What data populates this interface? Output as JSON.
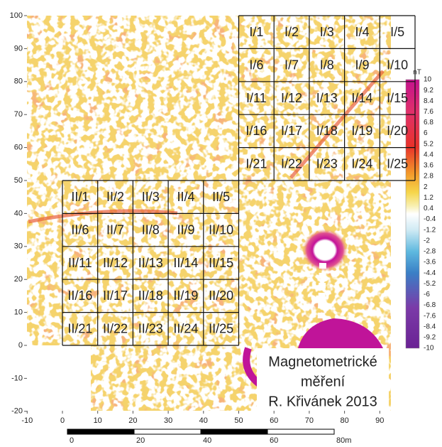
{
  "x_axis": {
    "ticks": [
      -10,
      0,
      10,
      20,
      30,
      40,
      50,
      60,
      70,
      80,
      90
    ]
  },
  "y_axis": {
    "ticks": [
      100,
      90,
      80,
      70,
      60,
      50,
      40,
      30,
      20,
      10,
      0,
      -10,
      -20
    ]
  },
  "grid_1": {
    "cells": [
      "I/1",
      "I/2",
      "I/3",
      "I/4",
      "I/5",
      "I/6",
      "I/7",
      "I/8",
      "I/9",
      "I/10",
      "I/11",
      "I/12",
      "I/13",
      "I/14",
      "I/15",
      "I/16",
      "I/17",
      "I/18",
      "I/19",
      "I/20",
      "I/21",
      "I/22",
      "I/23",
      "I/24",
      "I/25"
    ]
  },
  "grid_2": {
    "cells": [
      "II/1",
      "II/2",
      "II/3",
      "II/4",
      "II/5",
      "II/6",
      "II/7",
      "II/8",
      "II/9",
      "II/10",
      "II/11",
      "II/12",
      "II/13",
      "II/14",
      "II/15",
      "II/16",
      "II/17",
      "II/18",
      "II/19",
      "II/20",
      "II/21",
      "II/22",
      "II/23",
      "II/24",
      "II/25"
    ]
  },
  "colorbar": {
    "unit": "nT",
    "labels": [
      10,
      9.2,
      8.4,
      7.6,
      6.8,
      6,
      5.2,
      4.4,
      3.6,
      2.8,
      2,
      1.2,
      0.4,
      -0.4,
      -1.2,
      -2,
      -2.8,
      -3.6,
      -4.4,
      -5.2,
      -6,
      -6.8,
      -7.6,
      -8.4,
      -9.2,
      -10
    ]
  },
  "scale_bar": {
    "ticks": [
      0,
      20,
      40,
      60,
      {
        "value": 80,
        "label": "80m"
      }
    ]
  },
  "caption": {
    "lines": [
      "Magnetometrické",
      "měření",
      "R. Křivánek 2013"
    ]
  }
}
